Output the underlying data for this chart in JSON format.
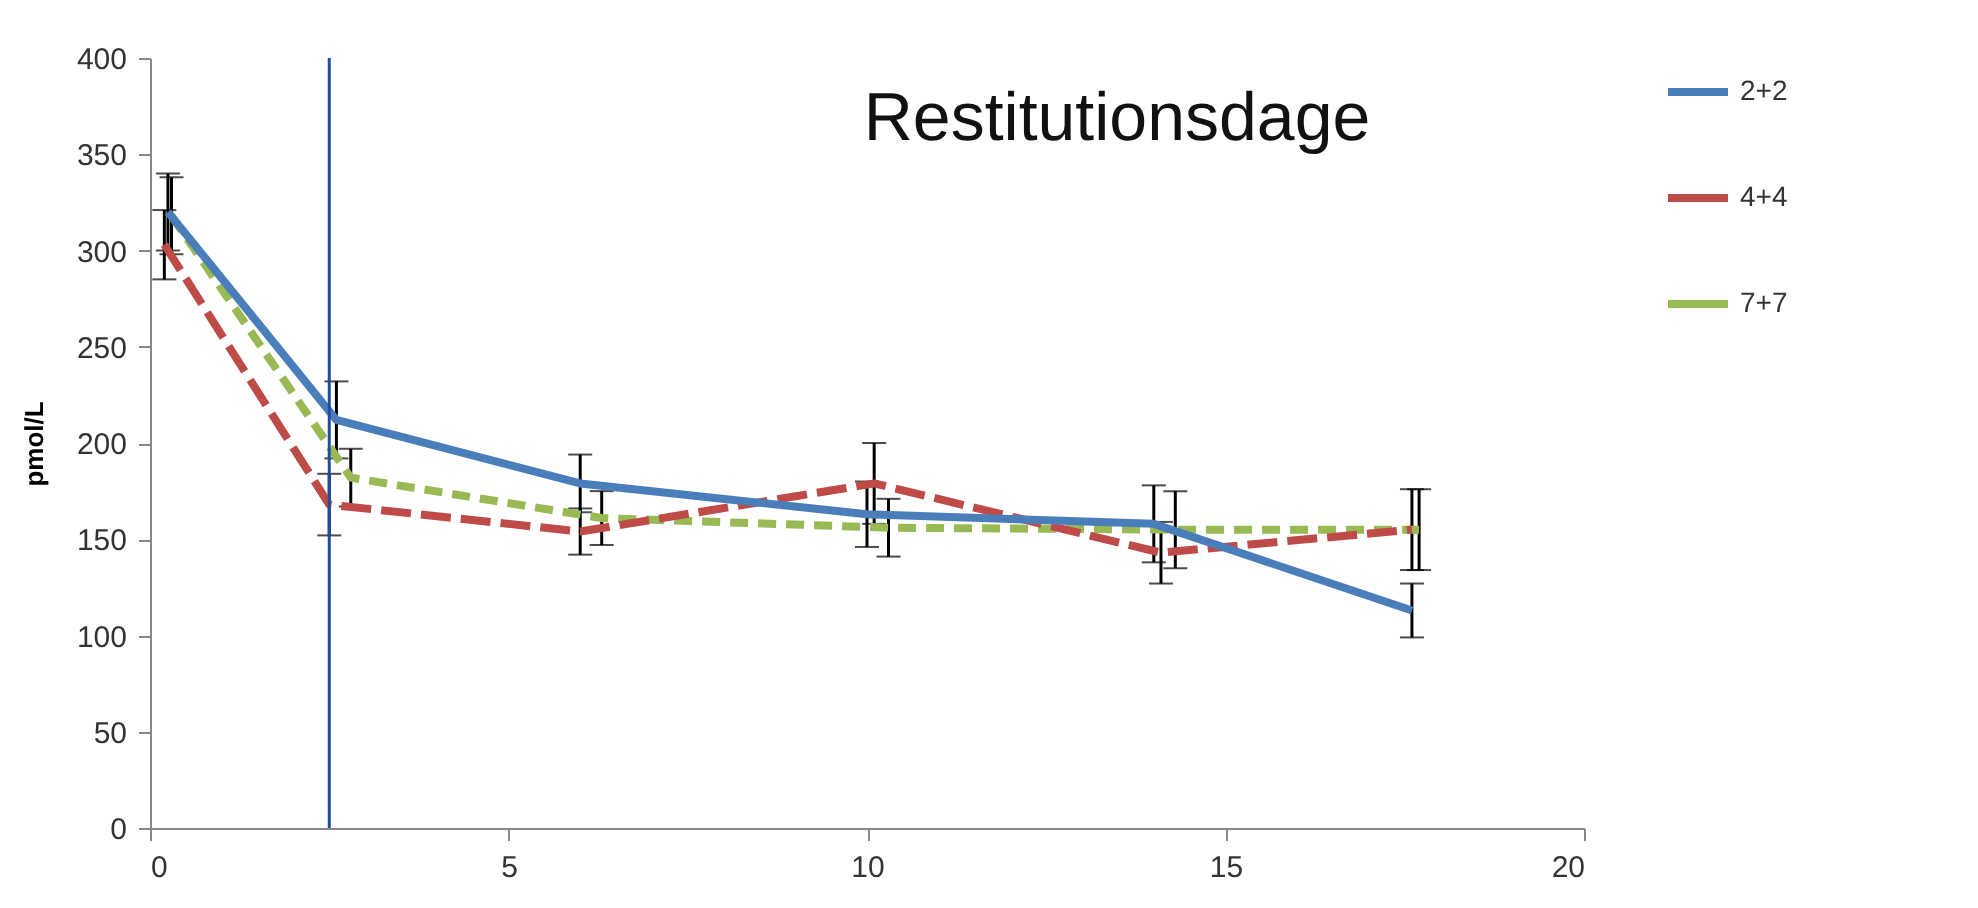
{
  "chart_data": {
    "type": "line",
    "title": "Restitutionsdage",
    "ylabel": "pmol/L",
    "xlim": [
      0,
      20
    ],
    "xticks": [
      0,
      5,
      10,
      15,
      20
    ],
    "ylim": [
      0,
      400
    ],
    "yticks": [
      0,
      50,
      100,
      150,
      200,
      250,
      300,
      350,
      400
    ],
    "grid": false,
    "legend": "right",
    "marker": "none",
    "ref_lines": [
      {
        "axis": "x",
        "value": 2.5,
        "color": "#1f4e9c"
      }
    ],
    "series": [
      {
        "name": "2+2",
        "color": "#4a7ebb",
        "line_style": "solid",
        "x": [
          0.25,
          2.6,
          6,
          10,
          14,
          17.6
        ],
        "values": [
          320,
          212,
          179,
          163,
          158,
          113
        ],
        "errors": [
          20,
          20,
          15,
          17,
          20,
          14
        ]
      },
      {
        "name": "4+4",
        "color": "#be4b48",
        "line_style": "dashed",
        "x": [
          0.2,
          2.5,
          6,
          10.1,
          14.1,
          17.6
        ],
        "values": [
          303,
          168,
          154,
          179,
          143,
          155
        ],
        "errors": [
          18,
          16,
          12,
          21,
          16,
          21
        ]
      },
      {
        "name": "7+7",
        "color": "#98b954",
        "line_style": "dotted",
        "x": [
          0.3,
          2.8,
          6.3,
          10.3,
          14.3,
          17.7
        ],
        "values": [
          318,
          182,
          161,
          156,
          155,
          155
        ],
        "errors": [
          20,
          15,
          14,
          15,
          20,
          21
        ]
      }
    ]
  }
}
